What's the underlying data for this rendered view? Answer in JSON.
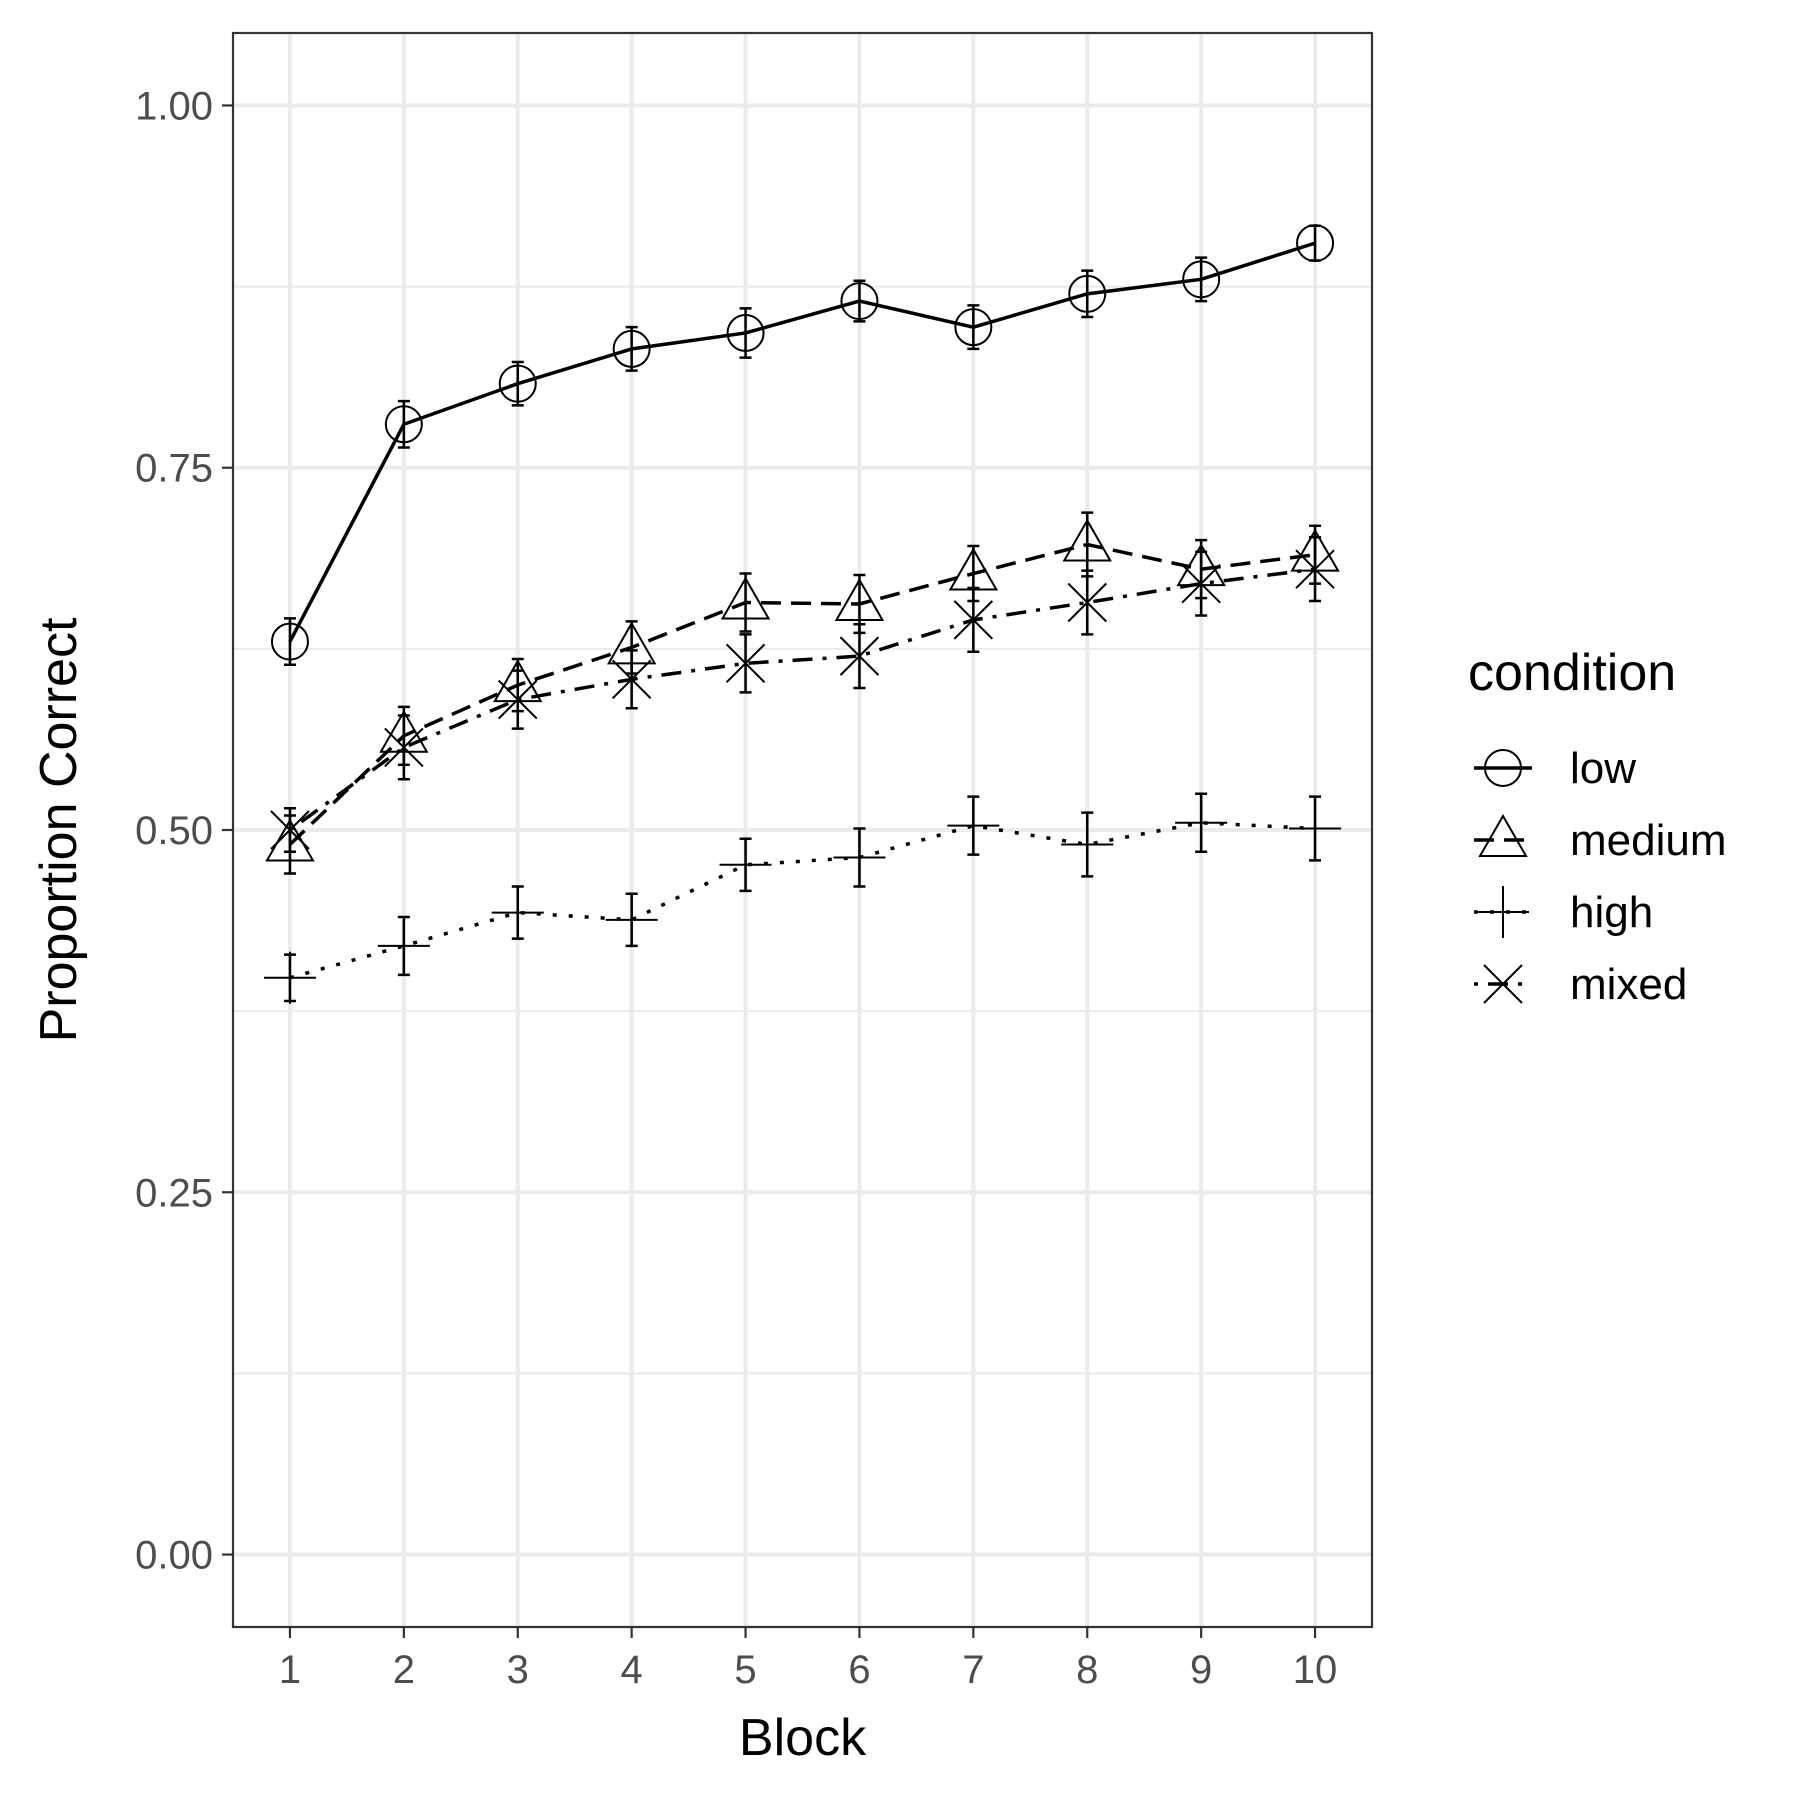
{
  "chart_data": {
    "type": "line",
    "xlabel": "Block",
    "ylabel": "Proportion Correct",
    "x": [
      1,
      2,
      3,
      4,
      5,
      6,
      7,
      8,
      9,
      10
    ],
    "x_tick_labels": [
      "1",
      "2",
      "3",
      "4",
      "5",
      "6",
      "7",
      "8",
      "9",
      "10"
    ],
    "y_ticks": [
      0,
      0.25,
      0.5,
      0.75,
      1.0
    ],
    "y_tick_labels": [
      "0.00",
      "0.25",
      "0.50",
      "0.75",
      "1.00"
    ],
    "xlim": [
      0.5,
      10.5
    ],
    "ylim": [
      -0.05,
      1.05
    ],
    "grid": true,
    "legend": {
      "title": "condition",
      "position": "right"
    },
    "series": [
      {
        "name": "low",
        "line": "solid",
        "marker": "circle",
        "values": [
          0.63,
          0.78,
          0.808,
          0.832,
          0.843,
          0.865,
          0.847,
          0.87,
          0.88,
          0.905
        ],
        "error": [
          0.016,
          0.016,
          0.015,
          0.015,
          0.017,
          0.014,
          0.015,
          0.016,
          0.015,
          0.012
        ]
      },
      {
        "name": "medium",
        "line": "dashed",
        "marker": "triangle",
        "values": [
          0.49,
          0.565,
          0.6,
          0.626,
          0.657,
          0.656,
          0.677,
          0.697,
          0.68,
          0.69
        ],
        "error": [
          0.02,
          0.02,
          0.018,
          0.018,
          0.02,
          0.02,
          0.019,
          0.022,
          0.02,
          0.02
        ]
      },
      {
        "name": "high",
        "line": "dotted",
        "marker": "plus",
        "values": [
          0.398,
          0.42,
          0.443,
          0.438,
          0.476,
          0.481,
          0.503,
          0.49,
          0.505,
          0.501
        ],
        "error": [
          0.016,
          0.02,
          0.018,
          0.018,
          0.018,
          0.02,
          0.02,
          0.022,
          0.02,
          0.022
        ]
      },
      {
        "name": "mixed",
        "line": "dotdash",
        "marker": "x",
        "values": [
          0.5,
          0.557,
          0.59,
          0.604,
          0.615,
          0.62,
          0.645,
          0.657,
          0.67,
          0.68
        ],
        "error": [
          0.015,
          0.022,
          0.02,
          0.02,
          0.02,
          0.022,
          0.022,
          0.022,
          0.022,
          0.022
        ]
      }
    ]
  }
}
